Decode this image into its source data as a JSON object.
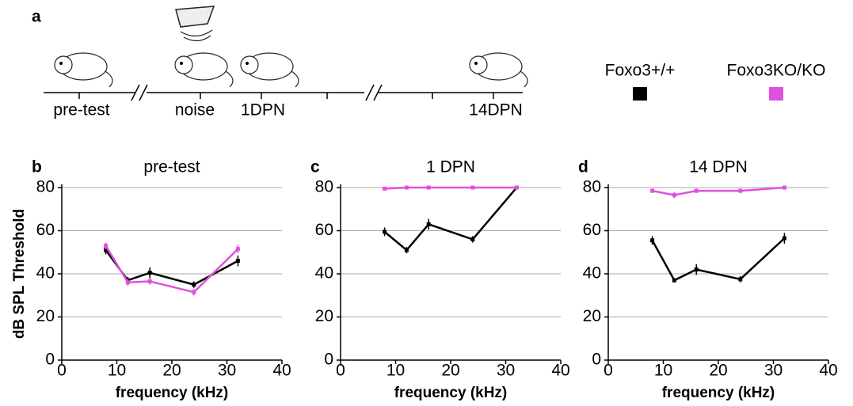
{
  "panel_a": {
    "letter": "a",
    "timeline": [
      "pre-test",
      "noise",
      "1DPN",
      "14DPN"
    ]
  },
  "legend": [
    {
      "name": "Foxo3+/+",
      "color": "#000000"
    },
    {
      "name": "Foxo3KO/KO",
      "color": "#e050e0"
    }
  ],
  "chart_data": [
    {
      "type": "line",
      "letter": "b",
      "title": "pre-test",
      "x_label": "frequency (kHz)",
      "y_label": "dB SPL Threshold",
      "x": [
        8,
        12,
        16,
        24,
        32
      ],
      "xlim": [
        0,
        40
      ],
      "xticks": [
        0,
        10,
        20,
        30,
        40
      ],
      "ylim": [
        0,
        80
      ],
      "yticks": [
        0,
        20,
        40,
        60,
        80
      ],
      "grid": true,
      "series": [
        {
          "color": "#000000",
          "values": [
            51,
            37,
            40.5,
            35,
            46
          ],
          "errors": [
            2,
            1.5,
            2.5,
            1.5,
            2.5
          ]
        },
        {
          "color": "#e050e0",
          "values": [
            53,
            36,
            36.5,
            31.5,
            51.5
          ],
          "errors": [
            1.5,
            1.5,
            1.5,
            1.5,
            2
          ]
        }
      ]
    },
    {
      "type": "line",
      "letter": "c",
      "title": "1 DPN",
      "x_label": "frequency (kHz)",
      "x": [
        8,
        12,
        16,
        24,
        32
      ],
      "xlim": [
        0,
        40
      ],
      "xticks": [
        0,
        10,
        20,
        30,
        40
      ],
      "ylim": [
        0,
        80
      ],
      "yticks": [
        0,
        20,
        40,
        60,
        80
      ],
      "grid": true,
      "series": [
        {
          "color": "#000000",
          "values": [
            59.5,
            51,
            63,
            56,
            80
          ],
          "errors": [
            2,
            1.5,
            2.5,
            1.5,
            0.5
          ]
        },
        {
          "color": "#e050e0",
          "values": [
            79.5,
            80,
            80,
            80,
            80
          ],
          "errors": [
            0.5,
            0.5,
            0.5,
            0.5,
            0.5
          ]
        }
      ]
    },
    {
      "type": "line",
      "letter": "d",
      "title": "14 DPN",
      "x_label": "frequency (kHz)",
      "x": [
        8,
        12,
        16,
        24,
        32
      ],
      "xlim": [
        0,
        40
      ],
      "xticks": [
        0,
        10,
        20,
        30,
        40
      ],
      "ylim": [
        0,
        80
      ],
      "yticks": [
        0,
        20,
        40,
        60,
        80
      ],
      "grid": true,
      "series": [
        {
          "color": "#000000",
          "values": [
            55.5,
            37,
            42,
            37.5,
            56.5
          ],
          "errors": [
            2,
            1,
            2.5,
            1.5,
            2.5
          ]
        },
        {
          "color": "#e050e0",
          "values": [
            78.5,
            76.5,
            78.5,
            78.5,
            80
          ],
          "errors": [
            1,
            1.5,
            1,
            1,
            0.5
          ]
        }
      ]
    }
  ]
}
